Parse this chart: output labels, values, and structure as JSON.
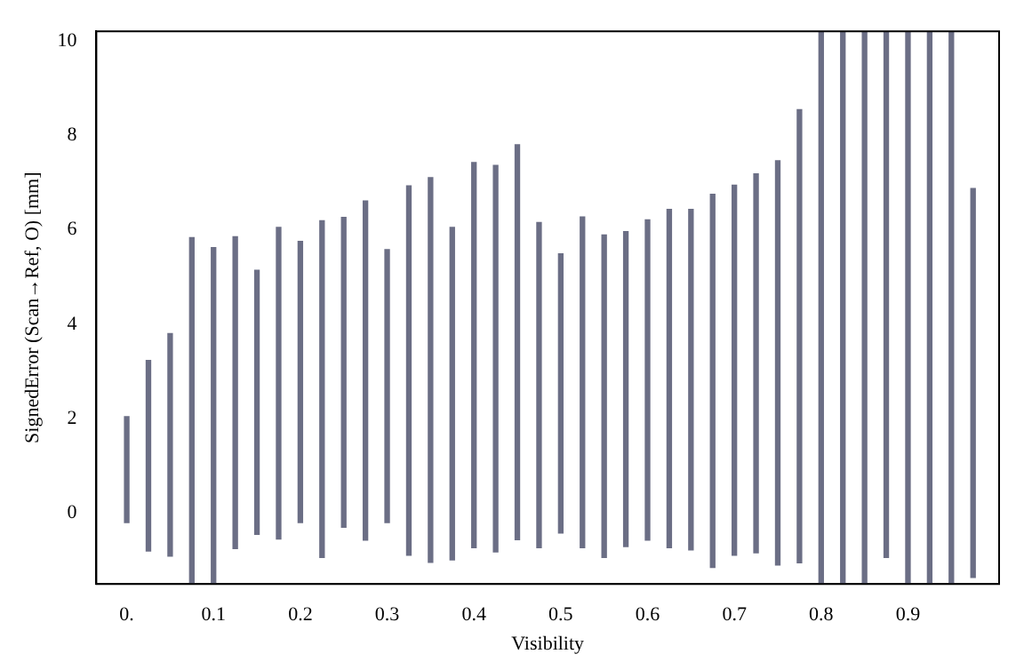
{
  "chart_data": {
    "type": "bar",
    "xlabel": "Visibility",
    "ylabel": "SignedError (Scan→Ref, O) [mm]",
    "x": [
      0,
      0.025,
      0.05,
      0.075,
      0.1,
      0.125,
      0.15,
      0.175,
      0.2,
      0.225,
      0.25,
      0.275,
      0.3,
      0.325,
      0.35,
      0.375,
      0.4,
      0.425,
      0.45,
      0.475,
      0.5,
      0.525,
      0.55,
      0.575,
      0.6,
      0.625,
      0.65,
      0.675,
      0.7,
      0.725,
      0.75,
      0.775,
      0.8,
      0.825,
      0.85,
      0.875,
      0.9,
      0.925,
      0.95,
      0.975
    ],
    "base": [
      -0.2,
      -0.8,
      -0.91,
      -1.5,
      -1.5,
      -0.75,
      -0.45,
      -0.55,
      -0.2,
      -0.94,
      -0.3,
      -0.57,
      -0.2,
      -0.89,
      -1.04,
      -0.99,
      -0.73,
      -0.82,
      -0.56,
      -0.73,
      -0.42,
      -0.73,
      -0.94,
      -0.71,
      -0.57,
      -0.73,
      -0.78,
      -1.15,
      -0.89,
      -0.84,
      -1.1,
      -1.05,
      -1.5,
      -1.5,
      -1.5,
      -0.94,
      -1.5,
      -1.5,
      -1.5,
      -1.36
    ],
    "values": [
      2.24,
      4.03,
      4.71,
      7.33,
      7.12,
      6.6,
      5.59,
      6.6,
      5.95,
      7.13,
      6.56,
      7.18,
      5.78,
      7.82,
      8.14,
      7.04,
      8.15,
      8.18,
      8.36,
      6.88,
      5.91,
      7.0,
      6.83,
      6.67,
      6.78,
      7.16,
      7.21,
      7.9,
      7.83,
      8.02,
      8.56,
      9.59,
      11.7,
      11.7,
      11.7,
      11.14,
      11.7,
      11.7,
      11.7,
      8.23
    ],
    "color": "#6b6e85",
    "xlim": [
      -0.035,
      1.005
    ],
    "xticks": [
      {
        "value": 0,
        "label": "0."
      },
      0.1,
      0.2,
      0.3,
      0.4,
      0.5,
      0.6,
      0.7,
      0.8,
      0.9
    ],
    "ylim": [
      -1.5,
      10.2
    ],
    "yticks": [
      0,
      2,
      4,
      6,
      8,
      10
    ],
    "grid": false,
    "legend": false
  }
}
